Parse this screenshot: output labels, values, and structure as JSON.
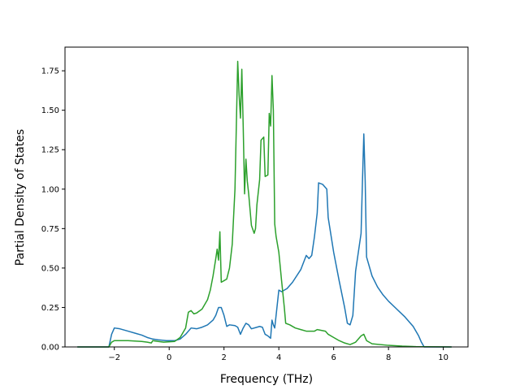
{
  "chart_data": {
    "type": "line",
    "title": "",
    "xlabel": "Frequency (THz)",
    "ylabel": "Partial Density of States",
    "xlim": [
      -3.8,
      10.9
    ],
    "ylim": [
      0,
      1.9
    ],
    "x_ticks": [
      -2,
      0,
      2,
      4,
      6,
      8,
      10
    ],
    "y_ticks": [
      0.0,
      0.25,
      0.5,
      0.75,
      1.0,
      1.25,
      1.5,
      1.75
    ],
    "x_tick_labels": [
      "−2",
      "0",
      "2",
      "4",
      "6",
      "8",
      "10"
    ],
    "y_tick_labels": [
      "0.00",
      "0.25",
      "0.50",
      "0.75",
      "1.00",
      "1.25",
      "1.50",
      "1.75"
    ],
    "grid": false,
    "legend": "none",
    "series": [
      {
        "color": "#1f77b4",
        "points": [
          [
            -3.35,
            0
          ],
          [
            -2.2,
            0
          ],
          [
            -2.1,
            0.08
          ],
          [
            -2.0,
            0.12
          ],
          [
            -1.8,
            0.115
          ],
          [
            -1.5,
            0.1
          ],
          [
            -1.2,
            0.085
          ],
          [
            -1.0,
            0.075
          ],
          [
            -0.8,
            0.06
          ],
          [
            -0.6,
            0.05
          ],
          [
            -0.4,
            0.045
          ],
          [
            -0.1,
            0.04
          ],
          [
            0.2,
            0.04
          ],
          [
            0.4,
            0.05
          ],
          [
            0.6,
            0.08
          ],
          [
            0.8,
            0.12
          ],
          [
            1.0,
            0.115
          ],
          [
            1.2,
            0.125
          ],
          [
            1.4,
            0.14
          ],
          [
            1.6,
            0.17
          ],
          [
            1.7,
            0.2
          ],
          [
            1.8,
            0.25
          ],
          [
            1.9,
            0.25
          ],
          [
            2.0,
            0.2
          ],
          [
            2.1,
            0.13
          ],
          [
            2.2,
            0.14
          ],
          [
            2.4,
            0.135
          ],
          [
            2.5,
            0.125
          ],
          [
            2.6,
            0.08
          ],
          [
            2.7,
            0.12
          ],
          [
            2.8,
            0.15
          ],
          [
            2.9,
            0.14
          ],
          [
            3.0,
            0.115
          ],
          [
            3.2,
            0.125
          ],
          [
            3.3,
            0.13
          ],
          [
            3.4,
            0.125
          ],
          [
            3.5,
            0.08
          ],
          [
            3.6,
            0.07
          ],
          [
            3.7,
            0.055
          ],
          [
            3.75,
            0.17
          ],
          [
            3.8,
            0.14
          ],
          [
            3.85,
            0.12
          ],
          [
            3.9,
            0.2
          ],
          [
            4.0,
            0.36
          ],
          [
            4.1,
            0.35
          ],
          [
            4.3,
            0.37
          ],
          [
            4.5,
            0.41
          ],
          [
            4.8,
            0.49
          ],
          [
            5.0,
            0.58
          ],
          [
            5.1,
            0.56
          ],
          [
            5.2,
            0.58
          ],
          [
            5.3,
            0.7
          ],
          [
            5.4,
            0.85
          ],
          [
            5.45,
            1.04
          ],
          [
            5.6,
            1.03
          ],
          [
            5.75,
            1.0
          ],
          [
            5.8,
            0.82
          ],
          [
            6.0,
            0.6
          ],
          [
            6.2,
            0.42
          ],
          [
            6.4,
            0.25
          ],
          [
            6.5,
            0.15
          ],
          [
            6.6,
            0.14
          ],
          [
            6.7,
            0.2
          ],
          [
            6.8,
            0.48
          ],
          [
            7.0,
            0.72
          ],
          [
            7.05,
            1.05
          ],
          [
            7.1,
            1.35
          ],
          [
            7.15,
            1.05
          ],
          [
            7.2,
            0.57
          ],
          [
            7.4,
            0.45
          ],
          [
            7.6,
            0.38
          ],
          [
            7.8,
            0.33
          ],
          [
            8.0,
            0.29
          ],
          [
            8.3,
            0.24
          ],
          [
            8.6,
            0.19
          ],
          [
            8.9,
            0.13
          ],
          [
            9.1,
            0.07
          ],
          [
            9.2,
            0.03
          ],
          [
            9.3,
            0
          ],
          [
            10.3,
            0
          ]
        ]
      },
      {
        "color": "#2ca02c",
        "points": [
          [
            -3.35,
            0
          ],
          [
            -2.2,
            0
          ],
          [
            -2.1,
            0.03
          ],
          [
            -2.0,
            0.04
          ],
          [
            -1.5,
            0.04
          ],
          [
            -1.0,
            0.035
          ],
          [
            -0.8,
            0.03
          ],
          [
            -0.65,
            0.025
          ],
          [
            -0.6,
            0.04
          ],
          [
            -0.4,
            0.035
          ],
          [
            -0.2,
            0.03
          ],
          [
            0.2,
            0.035
          ],
          [
            0.4,
            0.06
          ],
          [
            0.6,
            0.12
          ],
          [
            0.7,
            0.22
          ],
          [
            0.8,
            0.23
          ],
          [
            0.9,
            0.21
          ],
          [
            1.0,
            0.215
          ],
          [
            1.2,
            0.24
          ],
          [
            1.4,
            0.3
          ],
          [
            1.5,
            0.36
          ],
          [
            1.6,
            0.45
          ],
          [
            1.7,
            0.56
          ],
          [
            1.75,
            0.62
          ],
          [
            1.8,
            0.55
          ],
          [
            1.85,
            0.73
          ],
          [
            1.9,
            0.41
          ],
          [
            2.0,
            0.42
          ],
          [
            2.1,
            0.43
          ],
          [
            2.2,
            0.5
          ],
          [
            2.3,
            0.65
          ],
          [
            2.4,
            1.0
          ],
          [
            2.5,
            1.81
          ],
          [
            2.55,
            1.6
          ],
          [
            2.6,
            1.45
          ],
          [
            2.65,
            1.76
          ],
          [
            2.7,
            1.4
          ],
          [
            2.75,
            0.97
          ],
          [
            2.8,
            1.19
          ],
          [
            2.85,
            1.05
          ],
          [
            2.9,
            0.97
          ],
          [
            3.0,
            0.77
          ],
          [
            3.1,
            0.72
          ],
          [
            3.15,
            0.75
          ],
          [
            3.2,
            0.9
          ],
          [
            3.3,
            1.06
          ],
          [
            3.35,
            1.31
          ],
          [
            3.45,
            1.33
          ],
          [
            3.5,
            1.08
          ],
          [
            3.6,
            1.09
          ],
          [
            3.65,
            1.48
          ],
          [
            3.7,
            1.4
          ],
          [
            3.75,
            1.72
          ],
          [
            3.8,
            1.5
          ],
          [
            3.85,
            0.78
          ],
          [
            3.9,
            0.7
          ],
          [
            4.0,
            0.6
          ],
          [
            4.1,
            0.42
          ],
          [
            4.2,
            0.25
          ],
          [
            4.25,
            0.15
          ],
          [
            4.4,
            0.14
          ],
          [
            4.6,
            0.12
          ],
          [
            4.8,
            0.11
          ],
          [
            5.0,
            0.1
          ],
          [
            5.3,
            0.1
          ],
          [
            5.4,
            0.11
          ],
          [
            5.7,
            0.1
          ],
          [
            5.8,
            0.08
          ],
          [
            6.0,
            0.06
          ],
          [
            6.2,
            0.04
          ],
          [
            6.4,
            0.025
          ],
          [
            6.6,
            0.015
          ],
          [
            6.8,
            0.03
          ],
          [
            6.9,
            0.05
          ],
          [
            7.0,
            0.07
          ],
          [
            7.1,
            0.08
          ],
          [
            7.2,
            0.04
          ],
          [
            7.4,
            0.02
          ],
          [
            8.0,
            0.01
          ],
          [
            8.5,
            0.005
          ],
          [
            9.0,
            0.002
          ],
          [
            10.3,
            0
          ]
        ]
      }
    ]
  }
}
